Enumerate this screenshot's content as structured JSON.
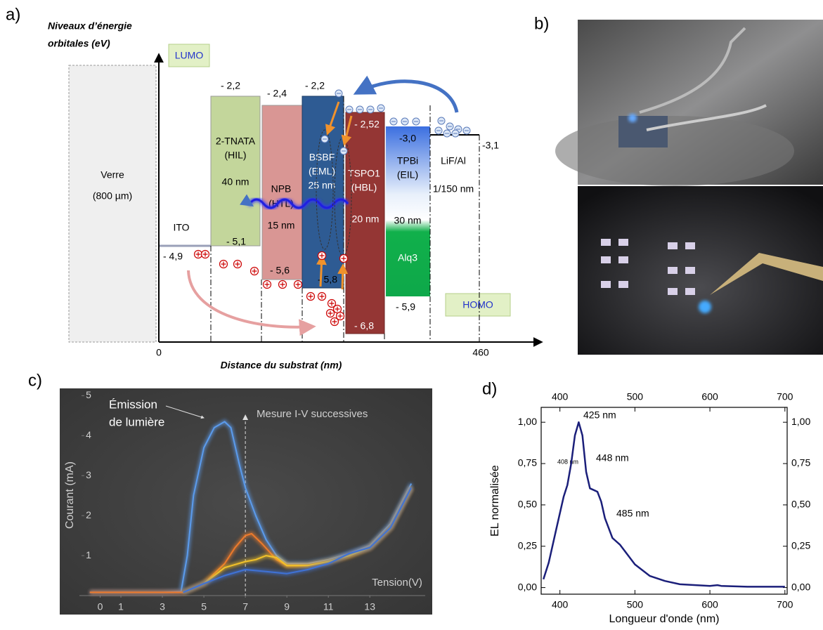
{
  "panels": {
    "a": "a)",
    "b": "b)",
    "c": "c)",
    "d": "d)"
  },
  "diagram": {
    "y_axis_label": [
      "Niveaux d’énergie",
      "orbitales (eV)"
    ],
    "x_axis_label": "Distance du substrat (nm)",
    "x_ticks": [
      "0",
      "460"
    ],
    "lumo": "LUMO",
    "homo": "HOMO",
    "substrate": [
      "Verre",
      "(800 µm)"
    ],
    "layers": [
      {
        "lines": [
          "ITO"
        ],
        "levels": [
          "- 4,9"
        ]
      },
      {
        "lines": [
          "2-TNATA",
          "(HIL)",
          "40 nm"
        ],
        "levels": [
          "- 2,2",
          "- 5,1"
        ]
      },
      {
        "lines": [
          "NPB",
          "(HTL)",
          "15 nm"
        ],
        "levels": [
          "- 2,4",
          "- 5,6"
        ]
      },
      {
        "lines": [
          "BSBF",
          "(EML)",
          "25 nm"
        ],
        "levels": [
          "- 2,2",
          "- 5,8"
        ]
      },
      {
        "lines": [
          "TSPO1",
          "(HBL)",
          "20 nm"
        ],
        "levels": [
          "- 2,52",
          "- 6,8"
        ]
      },
      {
        "lines": [
          "TPBi",
          "(EIL)",
          "30 nm",
          "Alq3"
        ],
        "levels": [
          "-3,0",
          "- 5,9"
        ]
      },
      {
        "lines": [
          "LiF/Al",
          "1/150 nm"
        ],
        "levels": [
          "-3,1"
        ]
      }
    ]
  },
  "chart_data": [
    {
      "type": "line",
      "y_axis_label": "Courant (mA)",
      "x_axis_label": "Tension(V)",
      "annotations": [
        "Émission",
        "de lumière",
        "Mesure I-V successives"
      ],
      "vline": 7,
      "xlim": [
        -1,
        15.5
      ],
      "ylim": [
        0,
        5.2
      ],
      "xticks": [
        0,
        1,
        3,
        5,
        7,
        9,
        11,
        13
      ],
      "yticks": [
        1,
        2,
        3,
        4,
        5
      ],
      "series": [
        {
          "color": "#5b9bec",
          "x": [
            -0.5,
            3,
            3.9,
            4.2,
            4.5,
            5,
            5.5,
            6,
            6.3,
            6.7,
            7,
            7.5,
            8,
            8.5,
            9,
            10,
            11,
            12,
            13,
            14,
            14.5,
            15
          ],
          "values": [
            0.08,
            0.08,
            0.1,
            1,
            2.5,
            3.7,
            4.2,
            4.35,
            4.2,
            3.3,
            2.7,
            2,
            1.4,
            1.0,
            0.8,
            0.8,
            0.9,
            1.05,
            1.25,
            1.8,
            2.3,
            2.8
          ]
        },
        {
          "color": "#ec7a2c",
          "x": [
            -0.5,
            4,
            5,
            6,
            6.5,
            7,
            7.3,
            7.8,
            8.5,
            9,
            10,
            11,
            12,
            13,
            14,
            15
          ],
          "values": [
            0.08,
            0.08,
            0.3,
            0.8,
            1.2,
            1.5,
            1.55,
            1.3,
            0.9,
            0.75,
            0.75,
            0.85,
            1.0,
            1.2,
            1.7,
            2.7
          ]
        },
        {
          "color": "#f2c22a",
          "x": [
            4,
            5,
            6,
            7,
            7.5,
            8,
            8.5,
            9,
            10,
            11,
            12,
            13,
            14,
            15
          ],
          "values": [
            0.08,
            0.3,
            0.7,
            0.85,
            0.9,
            1.0,
            0.95,
            0.75,
            0.75,
            0.85,
            1.0,
            1.2,
            1.7,
            2.7
          ]
        },
        {
          "color": "#3f72d6",
          "x": [
            4,
            5,
            6,
            7,
            8,
            9,
            10,
            11,
            12,
            13,
            14,
            15
          ],
          "values": [
            0.08,
            0.3,
            0.5,
            0.65,
            0.6,
            0.55,
            0.65,
            0.8,
            1.05,
            1.2,
            1.7,
            2.7
          ]
        }
      ]
    },
    {
      "type": "line",
      "x_axis_label": "Longueur d'onde (nm)",
      "y_axis_label": "EL normalisée",
      "peak_labels": [
        "425 nm",
        "408 nm",
        "448 nm",
        "485 nm"
      ],
      "xlim": [
        375,
        703
      ],
      "ylim": [
        -0.04,
        1.09
      ],
      "xticks": [
        400,
        500,
        600,
        700
      ],
      "yticks": [
        {
          "value": 0,
          "label": "0,00"
        },
        {
          "value": 0.25,
          "label": "0,25"
        },
        {
          "value": 0.5,
          "label": "0,50"
        },
        {
          "value": 0.75,
          "label": "0,75"
        },
        {
          "value": 1,
          "label": "1,00"
        }
      ],
      "series": [
        {
          "color": "#1b1f7a",
          "x": [
            378,
            385,
            395,
            405,
            410,
            415,
            420,
            425,
            430,
            435,
            440,
            445,
            450,
            455,
            460,
            470,
            480,
            490,
            500,
            520,
            540,
            560,
            600,
            610,
            615,
            650,
            700
          ],
          "values": [
            0.05,
            0.15,
            0.35,
            0.55,
            0.62,
            0.75,
            0.92,
            1.0,
            0.92,
            0.7,
            0.6,
            0.59,
            0.58,
            0.52,
            0.42,
            0.3,
            0.26,
            0.2,
            0.14,
            0.07,
            0.04,
            0.02,
            0.01,
            0.015,
            0.01,
            0.005,
            0.005
          ]
        }
      ]
    }
  ]
}
